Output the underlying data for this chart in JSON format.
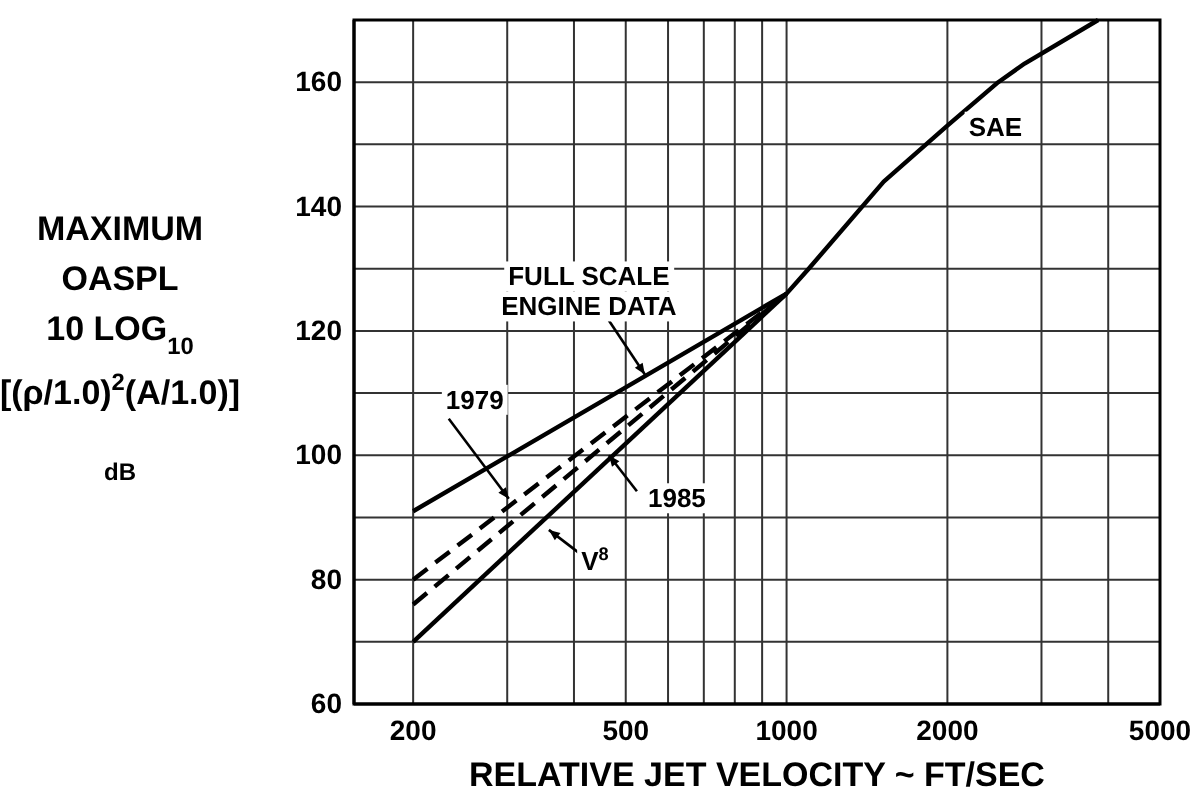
{
  "chart_data": {
    "type": "line",
    "xlabel": "RELATIVE JET VELOCITY ~ FT/SEC",
    "ylabel": "MAXIMUM\nOASPL\n10 LOG$_{10}$\n[(ρ/1.0)$^{2}$(A/1.0)]\ndB",
    "log": "x",
    "grid": true,
    "marker": "none",
    "xlim": [
      155,
      5000
    ],
    "ylim": [
      60,
      170
    ],
    "xticks": [
      200,
      {
        "value": 300,
        "label": null
      },
      {
        "value": 400,
        "label": null
      },
      500,
      {
        "value": 600,
        "label": null
      },
      {
        "value": 700,
        "label": null
      },
      {
        "value": 800,
        "label": null
      },
      {
        "value": 900,
        "label": null
      },
      1000,
      2000,
      {
        "value": 3000,
        "label": null
      },
      {
        "value": 4000,
        "label": null
      },
      5000
    ],
    "yticks": [
      60,
      {
        "value": 70,
        "label": null
      },
      80,
      {
        "value": 90,
        "label": null
      },
      100,
      {
        "value": 110,
        "label": null
      },
      120,
      {
        "value": 130,
        "label": null
      },
      140,
      {
        "value": 150,
        "label": null
      },
      160
    ],
    "series": [
      {
        "color": "#000000",
        "line_style": "solid",
        "x": [
          200,
          1000,
          1100,
          1520,
          2000,
          2490,
          2790,
          3830
        ],
        "values": [
          91,
          126,
          130,
          144,
          153,
          160,
          163,
          170
        ]
      },
      {
        "color": "#000000",
        "line_style": "dashed",
        "x": [
          200,
          1000
        ],
        "values": [
          80,
          126
        ]
      },
      {
        "color": "#000000",
        "line_style": "dashed",
        "x": [
          200,
          1000
        ],
        "values": [
          76,
          126
        ]
      },
      {
        "color": "#000000",
        "line_style": "solid",
        "x": [
          200,
          1000
        ],
        "values": [
          70,
          126
        ]
      }
    ],
    "annotations": [
      {
        "text": "FULL SCALE\nENGINE DATA",
        "x": 543,
        "y": 113
      },
      {
        "text": "1979",
        "x": 302,
        "y": 93
      },
      {
        "text": "1985",
        "x": 465,
        "y": 100
      },
      {
        "text": "V$^{8}$",
        "x": 359,
        "y": 88
      },
      {
        "text": "SAE",
        "x": 2000,
        "y": 153
      }
    ]
  }
}
